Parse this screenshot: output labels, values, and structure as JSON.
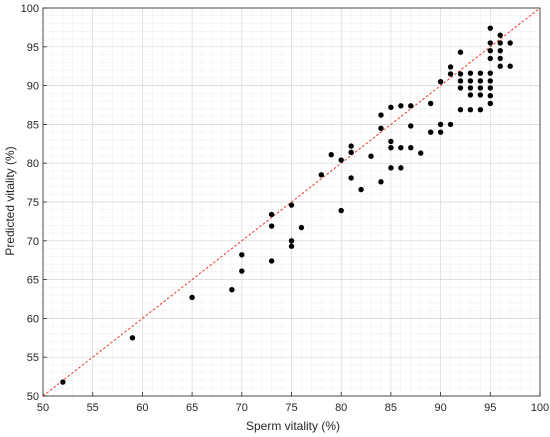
{
  "chart_data": {
    "type": "scatter",
    "xlabel": "Sperm vitality (%)",
    "ylabel": "Predicted vitality (%)",
    "xlim": [
      50,
      100
    ],
    "ylim": [
      50,
      100
    ],
    "xticks": [
      50,
      55,
      60,
      65,
      70,
      75,
      80,
      85,
      90,
      95,
      100
    ],
    "yticks": [
      50,
      55,
      60,
      65,
      70,
      75,
      80,
      85,
      90,
      95,
      100
    ],
    "grid": true,
    "reference_line": {
      "from": [
        50,
        50
      ],
      "to": [
        100,
        100
      ],
      "style": "dotted",
      "color": "#e8382c"
    },
    "point_color": "#000000",
    "points": [
      [
        52,
        51.8
      ],
      [
        59,
        57.5
      ],
      [
        65,
        62.7
      ],
      [
        69,
        63.7
      ],
      [
        70,
        66.1
      ],
      [
        70,
        68.2
      ],
      [
        73,
        67.4
      ],
      [
        73,
        71.9
      ],
      [
        73,
        73.4
      ],
      [
        75,
        69.3
      ],
      [
        75,
        70.0
      ],
      [
        75,
        74.6
      ],
      [
        76,
        71.7
      ],
      [
        78,
        78.5
      ],
      [
        79,
        81.1
      ],
      [
        80,
        73.9
      ],
      [
        80,
        80.4
      ],
      [
        81,
        78.1
      ],
      [
        81,
        81.4
      ],
      [
        81,
        82.2
      ],
      [
        82,
        76.6
      ],
      [
        83,
        80.9
      ],
      [
        84,
        77.6
      ],
      [
        84,
        84.5
      ],
      [
        84,
        86.2
      ],
      [
        85,
        79.4
      ],
      [
        85,
        82.0
      ],
      [
        85,
        82.8
      ],
      [
        85,
        87.2
      ],
      [
        86,
        79.4
      ],
      [
        86,
        82.0
      ],
      [
        86,
        87.4
      ],
      [
        87,
        82.0
      ],
      [
        87,
        84.8
      ],
      [
        87,
        87.4
      ],
      [
        88,
        81.3
      ],
      [
        89,
        84.0
      ],
      [
        89,
        87.7
      ],
      [
        90,
        84.0
      ],
      [
        90,
        85.0
      ],
      [
        90,
        90.5
      ],
      [
        91,
        85.0
      ],
      [
        91,
        91.5
      ],
      [
        91,
        92.4
      ],
      [
        92,
        86.9
      ],
      [
        92,
        89.7
      ],
      [
        92,
        90.6
      ],
      [
        92,
        91.5
      ],
      [
        92,
        94.3
      ],
      [
        93,
        86.9
      ],
      [
        93,
        88.8
      ],
      [
        93,
        89.7
      ],
      [
        93,
        90.6
      ],
      [
        93,
        91.6
      ],
      [
        94,
        86.9
      ],
      [
        94,
        88.8
      ],
      [
        94,
        89.7
      ],
      [
        94,
        90.6
      ],
      [
        94,
        91.6
      ],
      [
        95,
        87.7
      ],
      [
        95,
        88.7
      ],
      [
        95,
        89.7
      ],
      [
        95,
        90.6
      ],
      [
        95,
        91.6
      ],
      [
        95,
        93.5
      ],
      [
        95,
        94.5
      ],
      [
        95,
        95.5
      ],
      [
        95,
        97.4
      ],
      [
        96,
        92.5
      ],
      [
        96,
        93.5
      ],
      [
        96,
        94.5
      ],
      [
        96,
        95.5
      ],
      [
        96,
        96.5
      ],
      [
        97,
        92.5
      ],
      [
        97,
        95.5
      ]
    ]
  }
}
